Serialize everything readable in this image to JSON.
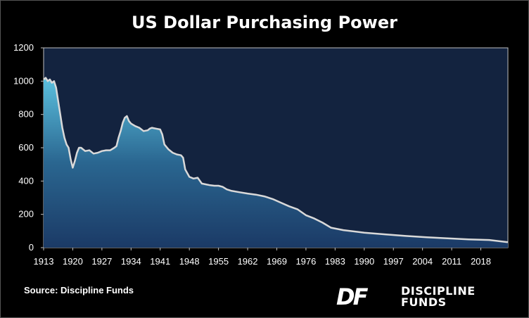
{
  "title": "US Dollar Purchasing Power",
  "source": "Source: Discipline Funds",
  "logo": {
    "mark": "DF",
    "line1": "DISCIPLINE",
    "line2": "FUNDS"
  },
  "colors": {
    "plot_bg": "#13233f",
    "area_top": "#5bc0de",
    "area_bottom": "#1b3a66",
    "line": "#d9d9d9"
  },
  "chart_data": {
    "type": "area",
    "title": "US Dollar Purchasing Power",
    "xlabel": "",
    "ylabel": "",
    "xlim": [
      1913,
      2024.5
    ],
    "ylim": [
      0,
      1200
    ],
    "y_ticks": [
      "0",
      "200",
      "400",
      "600",
      "800",
      "1000",
      "1200"
    ],
    "x_ticks": [
      "1913",
      "1920",
      "1927",
      "1934",
      "1941",
      "1948",
      "1955",
      "1962",
      "1969",
      "1976",
      "1983",
      "1990",
      "1997",
      "2004",
      "2011",
      "2018"
    ],
    "grid": false,
    "legend": "none",
    "series": [
      {
        "x": [
          1913,
          1913.5,
          1914,
          1914.5,
          1915,
          1915.5,
          1916,
          1916.5,
          1917,
          1917.5,
          1918,
          1918.5,
          1919,
          1919.5,
          1920,
          1920.5,
          1921,
          1921.5,
          1922,
          1922.5,
          1923,
          1924,
          1925,
          1926,
          1927,
          1928,
          1929,
          1930,
          1930.5,
          1931,
          1931.5,
          1932,
          1932.5,
          1933,
          1933.5,
          1934,
          1935,
          1936,
          1937,
          1938,
          1938.5,
          1939,
          1940,
          1941,
          1941.5,
          1942,
          1943,
          1944,
          1945,
          1946,
          1946.5,
          1947,
          1948,
          1949,
          1950,
          1951,
          1952,
          1953,
          1954,
          1955,
          1956,
          1957,
          1958,
          1960,
          1962,
          1964,
          1966,
          1968,
          1970,
          1972,
          1974,
          1976,
          1978,
          1980,
          1982,
          1985,
          1990,
          1995,
          2000,
          2005,
          2010,
          2015,
          2020,
          2022,
          2024.5
        ],
        "y": [
          1010,
          1020,
          1000,
          1010,
          990,
          1000,
          960,
          880,
          800,
          720,
          660,
          620,
          600,
          530,
          480,
          520,
          570,
          600,
          600,
          590,
          580,
          585,
          565,
          570,
          580,
          585,
          585,
          600,
          610,
          660,
          700,
          750,
          780,
          790,
          760,
          745,
          730,
          720,
          700,
          705,
          715,
          720,
          715,
          710,
          680,
          620,
          590,
          570,
          560,
          555,
          540,
          470,
          425,
          415,
          420,
          385,
          380,
          375,
          372,
          372,
          365,
          350,
          342,
          333,
          325,
          318,
          308,
          292,
          270,
          248,
          230,
          195,
          175,
          150,
          120,
          105,
          90,
          80,
          70,
          62,
          56,
          50,
          46,
          40,
          33
        ]
      }
    ]
  }
}
